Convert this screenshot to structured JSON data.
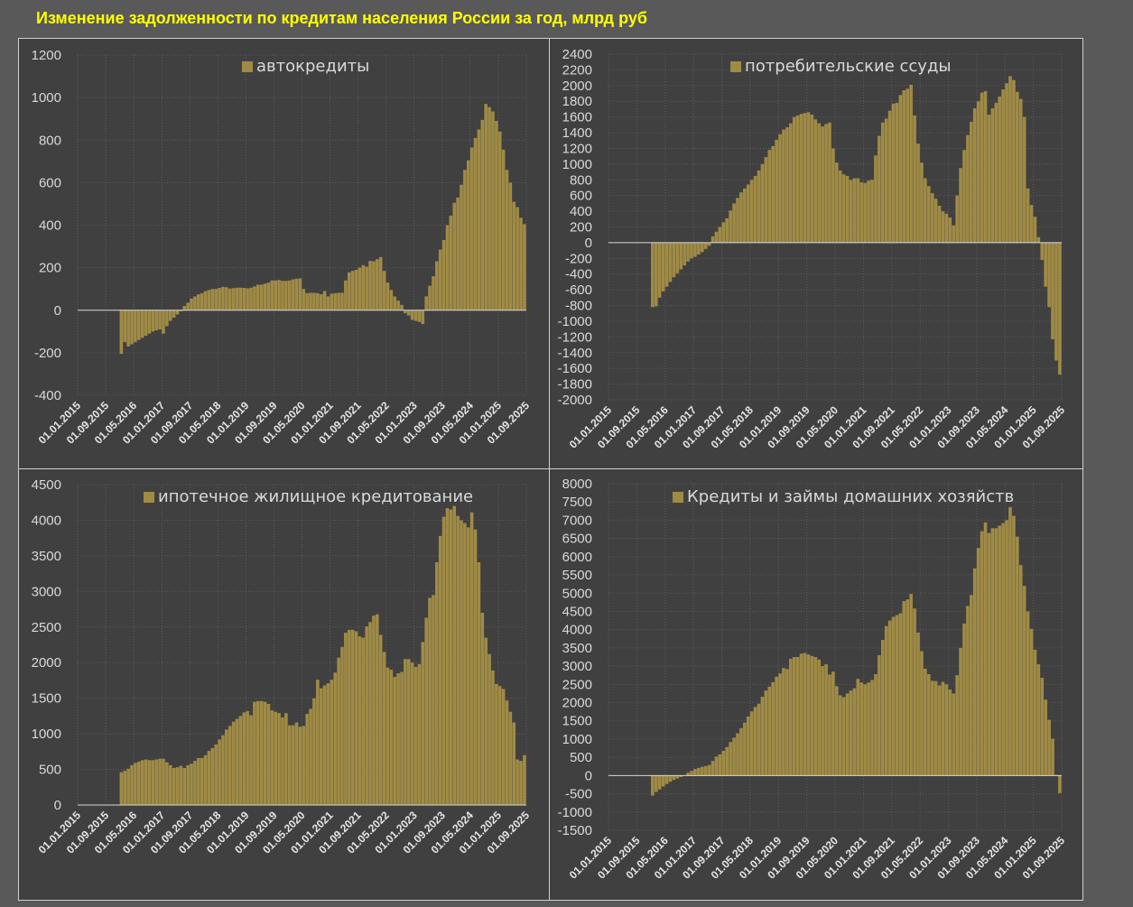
{
  "title": "Изменение задолженности по кредитам населения России за год, млрд руб",
  "colors": {
    "bar": "#a08b45",
    "background": "#404040",
    "page": "#595959",
    "title": "#ffff00",
    "text": "#d9d9d9"
  },
  "chart_data": [
    {
      "type": "bar",
      "title": "автокредиты",
      "legend": "автокредиты",
      "legend_position": "top-center",
      "x_start": "01.01.2016",
      "x_frequency": "monthly",
      "x_ticks": [
        "01.01.2015",
        "01.09.2015",
        "01.05.2016",
        "01.01.2017",
        "01.09.2017",
        "01.05.2018",
        "01.01.2019",
        "01.09.2019",
        "01.05.2020",
        "01.01.2021",
        "01.09.2021",
        "01.05.2022",
        "01.01.2023",
        "01.09.2023",
        "01.05.2024",
        "01.01.2025",
        "01.09.2025"
      ],
      "ylim": [
        -400,
        1200
      ],
      "y_ticks": [
        -400,
        -200,
        0,
        200,
        400,
        600,
        800,
        1000,
        1200
      ],
      "grid": true,
      "values": [
        -205,
        -150,
        -170,
        -160,
        -150,
        -140,
        -130,
        -120,
        -110,
        -100,
        -95,
        -90,
        -110,
        -75,
        -50,
        -35,
        -20,
        -5,
        20,
        35,
        55,
        65,
        75,
        80,
        90,
        95,
        100,
        100,
        105,
        110,
        108,
        102,
        104,
        106,
        106,
        105,
        103,
        106,
        112,
        120,
        120,
        125,
        130,
        140,
        140,
        142,
        138,
        138,
        140,
        145,
        148,
        150,
        100,
        80,
        82,
        82,
        80,
        75,
        90,
        65,
        78,
        80,
        82,
        82,
        140,
        178,
        185,
        190,
        200,
        212,
        205,
        232,
        230,
        240,
        250,
        185,
        130,
        95,
        65,
        45,
        25,
        -15,
        -25,
        -45,
        -50,
        -55,
        -65,
        65,
        115,
        160,
        230,
        285,
        330,
        400,
        445,
        505,
        530,
        590,
        660,
        705,
        765,
        810,
        850,
        895,
        970,
        955,
        935,
        890,
        840,
        755,
        660,
        600,
        510,
        485,
        435,
        405
      ]
    },
    {
      "type": "bar",
      "title": "потребительские ссуды",
      "legend": "потребительские ссуды",
      "legend_position": "top-center",
      "x_start": "01.01.2016",
      "x_frequency": "monthly",
      "x_ticks": [
        "01.01.2015",
        "01.09.2015",
        "01.05.2016",
        "01.01.2017",
        "01.09.2017",
        "01.05.2018",
        "01.01.2019",
        "01.09.2019",
        "01.05.2020",
        "01.01.2021",
        "01.09.2021",
        "01.05.2022",
        "01.01.2023",
        "01.09.2023",
        "01.05.2024",
        "01.01.2025",
        "01.09.2025"
      ],
      "ylim": [
        -2000,
        2400
      ],
      "y_ticks": [
        -2000,
        -1800,
        -1600,
        -1400,
        -1200,
        -1000,
        -800,
        -600,
        -400,
        -200,
        0,
        200,
        400,
        600,
        800,
        1000,
        1200,
        1400,
        1600,
        1800,
        2000,
        2200,
        2400
      ],
      "grid": true,
      "values": [
        -820,
        -810,
        -700,
        -620,
        -560,
        -500,
        -440,
        -390,
        -340,
        -290,
        -240,
        -200,
        -180,
        -150,
        -120,
        -80,
        -40,
        80,
        140,
        200,
        260,
        310,
        410,
        500,
        570,
        640,
        690,
        740,
        800,
        850,
        920,
        1000,
        1090,
        1180,
        1230,
        1310,
        1380,
        1440,
        1470,
        1520,
        1600,
        1620,
        1640,
        1650,
        1660,
        1630,
        1570,
        1520,
        1480,
        1510,
        1530,
        1200,
        1020,
        920,
        870,
        850,
        800,
        820,
        820,
        770,
        760,
        790,
        800,
        1110,
        1360,
        1530,
        1580,
        1680,
        1770,
        1780,
        1880,
        1940,
        1960,
        2010,
        1620,
        1260,
        1020,
        820,
        720,
        630,
        560,
        470,
        400,
        370,
        320,
        220,
        600,
        950,
        1180,
        1370,
        1540,
        1710,
        1800,
        1910,
        1930,
        1630,
        1710,
        1780,
        1860,
        1950,
        2030,
        2120,
        2070,
        1920,
        1830,
        1600,
        690,
        480,
        330,
        70,
        -220,
        -560,
        -820,
        -1230,
        -1500,
        -1680
      ]
    },
    {
      "type": "bar",
      "title": "ипотечное жилищное кредитование",
      "legend": "ипотечное жилищное кредитование",
      "legend_position": "top-center",
      "x_start": "01.01.2016",
      "x_frequency": "monthly",
      "x_ticks": [
        "01.01.2015",
        "01.09.2015",
        "01.05.2016",
        "01.01.2017",
        "01.09.2017",
        "01.05.2018",
        "01.01.2019",
        "01.09.2019",
        "01.05.2020",
        "01.01.2021",
        "01.09.2021",
        "01.05.2022",
        "01.01.2023",
        "01.09.2023",
        "01.05.2024",
        "01.01.2025",
        "01.09.2025"
      ],
      "ylim": [
        0,
        4500
      ],
      "y_ticks": [
        0,
        500,
        1000,
        1500,
        2000,
        2500,
        3000,
        3500,
        4000,
        4500
      ],
      "grid": true,
      "values": [
        460,
        480,
        510,
        560,
        590,
        610,
        630,
        640,
        630,
        630,
        640,
        650,
        650,
        600,
        560,
        520,
        530,
        550,
        520,
        560,
        580,
        620,
        660,
        660,
        700,
        760,
        800,
        850,
        920,
        980,
        1060,
        1110,
        1170,
        1210,
        1250,
        1300,
        1320,
        1260,
        1450,
        1460,
        1460,
        1450,
        1420,
        1330,
        1310,
        1290,
        1230,
        1290,
        1120,
        1120,
        1160,
        1100,
        1110,
        1280,
        1350,
        1500,
        1760,
        1640,
        1680,
        1710,
        1760,
        1860,
        2070,
        2220,
        2420,
        2460,
        2460,
        2440,
        2370,
        2350,
        2510,
        2570,
        2660,
        2680,
        2390,
        2150,
        1930,
        1900,
        1800,
        1850,
        1870,
        2050,
        2050,
        2000,
        1940,
        1980,
        2290,
        2630,
        2910,
        2950,
        3410,
        3780,
        4050,
        4170,
        4150,
        4200,
        4060,
        4000,
        3960,
        3900,
        4110,
        3870,
        3410,
        2700,
        2350,
        2120,
        1890,
        1700,
        1670,
        1630,
        1470,
        1310,
        1160,
        640,
        620,
        700
      ]
    },
    {
      "type": "bar",
      "title": "Кредиты и займы домашних хозяйств",
      "legend": "Кредиты и займы домашних хозяйств",
      "legend_position": "top-center",
      "x_start": "01.01.2016",
      "x_frequency": "monthly",
      "x_ticks": [
        "01.01.2015",
        "01.09.2015",
        "01.05.2016",
        "01.01.2017",
        "01.09.2017",
        "01.05.2018",
        "01.01.2019",
        "01.09.2019",
        "01.05.2020",
        "01.01.2021",
        "01.09.2021",
        "01.05.2022",
        "01.01.2023",
        "01.09.2023",
        "01.05.2024",
        "01.01.2025",
        "01.09.2025"
      ],
      "ylim": [
        -1500,
        8000
      ],
      "y_ticks": [
        -1500,
        -1000,
        -500,
        0,
        500,
        1000,
        1500,
        2000,
        2500,
        3000,
        3500,
        4000,
        4500,
        5000,
        5500,
        6000,
        6500,
        7000,
        7500,
        8000
      ],
      "grid": true,
      "values": [
        -550,
        -450,
        -380,
        -300,
        -230,
        -170,
        -120,
        -80,
        -40,
        10,
        80,
        130,
        180,
        210,
        240,
        260,
        290,
        400,
        520,
        580,
        680,
        780,
        920,
        1040,
        1160,
        1300,
        1450,
        1620,
        1760,
        1880,
        1970,
        2160,
        2330,
        2440,
        2560,
        2710,
        2800,
        2950,
        2920,
        3200,
        3250,
        3250,
        3340,
        3360,
        3320,
        3280,
        3250,
        3180,
        3000,
        3050,
        2770,
        2850,
        2450,
        2200,
        2150,
        2250,
        2330,
        2390,
        2650,
        2550,
        2500,
        2550,
        2620,
        2780,
        3300,
        3720,
        4100,
        4250,
        4350,
        4400,
        4450,
        4780,
        4830,
        4980,
        4580,
        3920,
        3410,
        2930,
        2780,
        2600,
        2590,
        2470,
        2570,
        2500,
        2360,
        2250,
        2750,
        3500,
        4170,
        4650,
        4950,
        5680,
        6240,
        6700,
        6940,
        6650,
        6780,
        6780,
        6850,
        6920,
        7000,
        7360,
        7120,
        6550,
        5770,
        5200,
        4500,
        4020,
        3450,
        3050,
        2680,
        2080,
        1530,
        1010,
        20,
        -480
      ]
    }
  ]
}
